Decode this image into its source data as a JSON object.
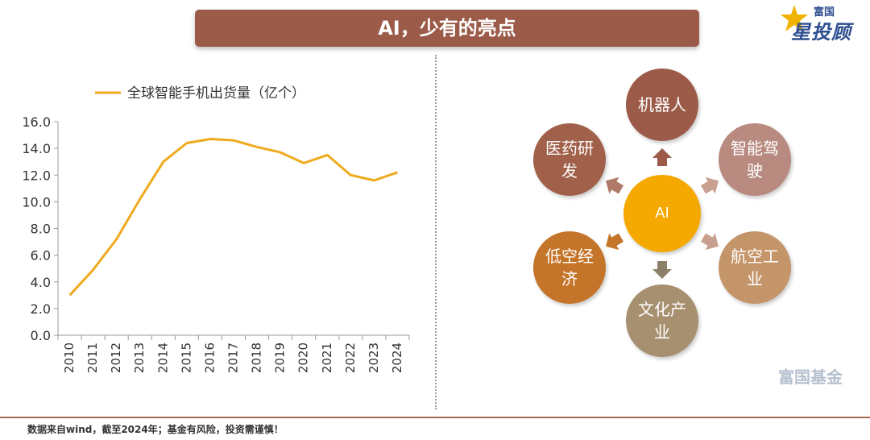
{
  "title": "AI，少有的亮点",
  "logo": {
    "top": "富国",
    "main": "星投顾"
  },
  "watermark": "富国基金",
  "footer": "数据来自wind，截至2024年；基金有风险，投资需谨慎！",
  "diagram": {
    "center": "AI",
    "nodes": [
      {
        "label": "机器人",
        "color": "#9c5b48"
      },
      {
        "label": "智能驾驶",
        "color": "#b88a80"
      },
      {
        "label": "航空工业",
        "color": "#c5956a"
      },
      {
        "label": "文化产业",
        "color": "#a69070"
      },
      {
        "label": "低空经济",
        "color": "#c5752a"
      },
      {
        "label": "医药研发",
        "color": "#a0604a"
      }
    ]
  },
  "chart_data": {
    "type": "line",
    "title": "",
    "legend": "全球智能手机出货量（亿个）",
    "legend_position": "top",
    "categories": [
      "2010",
      "2011",
      "2012",
      "2013",
      "2014",
      "2015",
      "2016",
      "2017",
      "2018",
      "2019",
      "2020",
      "2021",
      "2022",
      "2023",
      "2024"
    ],
    "series": [
      {
        "name": "全球智能手机出货量（亿个）",
        "color": "#f0aa1e",
        "values": [
          3.0,
          4.9,
          7.2,
          10.2,
          13.0,
          14.4,
          14.7,
          14.6,
          14.1,
          13.7,
          12.9,
          13.5,
          12.0,
          11.6,
          12.2
        ]
      }
    ],
    "y_ticks": [
      "0.0",
      "2.0",
      "4.0",
      "6.0",
      "8.0",
      "10.0",
      "12.0",
      "14.0",
      "16.0"
    ],
    "ylim": [
      0,
      16
    ],
    "grid": false
  }
}
